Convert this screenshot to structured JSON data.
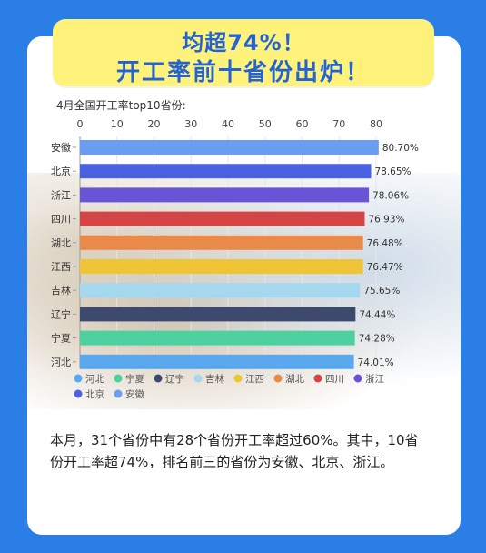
{
  "banner": {
    "line1": "均超74%！",
    "line2": "开工率前十省份出炉！"
  },
  "summary": "本月，31个省份中有28个省份开工率超过60%。其中，10省份开工率超74%，排名前三的省份为安徽、北京、浙江。",
  "chart_data": {
    "type": "bar",
    "orientation": "horizontal",
    "title": "4月全国开工率top10省份:",
    "categories": [
      "安徽",
      "北京",
      "浙江",
      "四川",
      "湖北",
      "江西",
      "吉林",
      "辽宁",
      "宁夏",
      "河北"
    ],
    "values": [
      80.7,
      78.65,
      78.06,
      76.93,
      76.48,
      76.47,
      75.65,
      74.44,
      74.28,
      74.01
    ],
    "value_labels": [
      "80.70%",
      "78.65%",
      "78.06%",
      "76.93%",
      "76.48%",
      "76.47%",
      "75.65%",
      "74.44%",
      "74.28%",
      "74.01%"
    ],
    "colors": [
      "#6b9ef0",
      "#4a62e0",
      "#6a54d6",
      "#d64545",
      "#ea8a4a",
      "#f0c535",
      "#a5d8ee",
      "#3d4a6e",
      "#4fd0a0",
      "#5aa8ee"
    ],
    "xlim": [
      0,
      80
    ],
    "x_ticks": [
      "0",
      "10",
      "20",
      "30",
      "40",
      "50",
      "60",
      "70",
      "80"
    ],
    "grid": true,
    "legend_position": "bottom",
    "legend": [
      "河北",
      "宁夏",
      "辽宁",
      "吉林",
      "江西",
      "湖北",
      "四川",
      "浙江",
      "北京",
      "安徽"
    ],
    "legend_colors": [
      "#5aa8ee",
      "#4fd0a0",
      "#3d4a6e",
      "#a5d8ee",
      "#f0c535",
      "#ea8a4a",
      "#d64545",
      "#6a54d6",
      "#4a62e0",
      "#6b9ef0"
    ]
  }
}
